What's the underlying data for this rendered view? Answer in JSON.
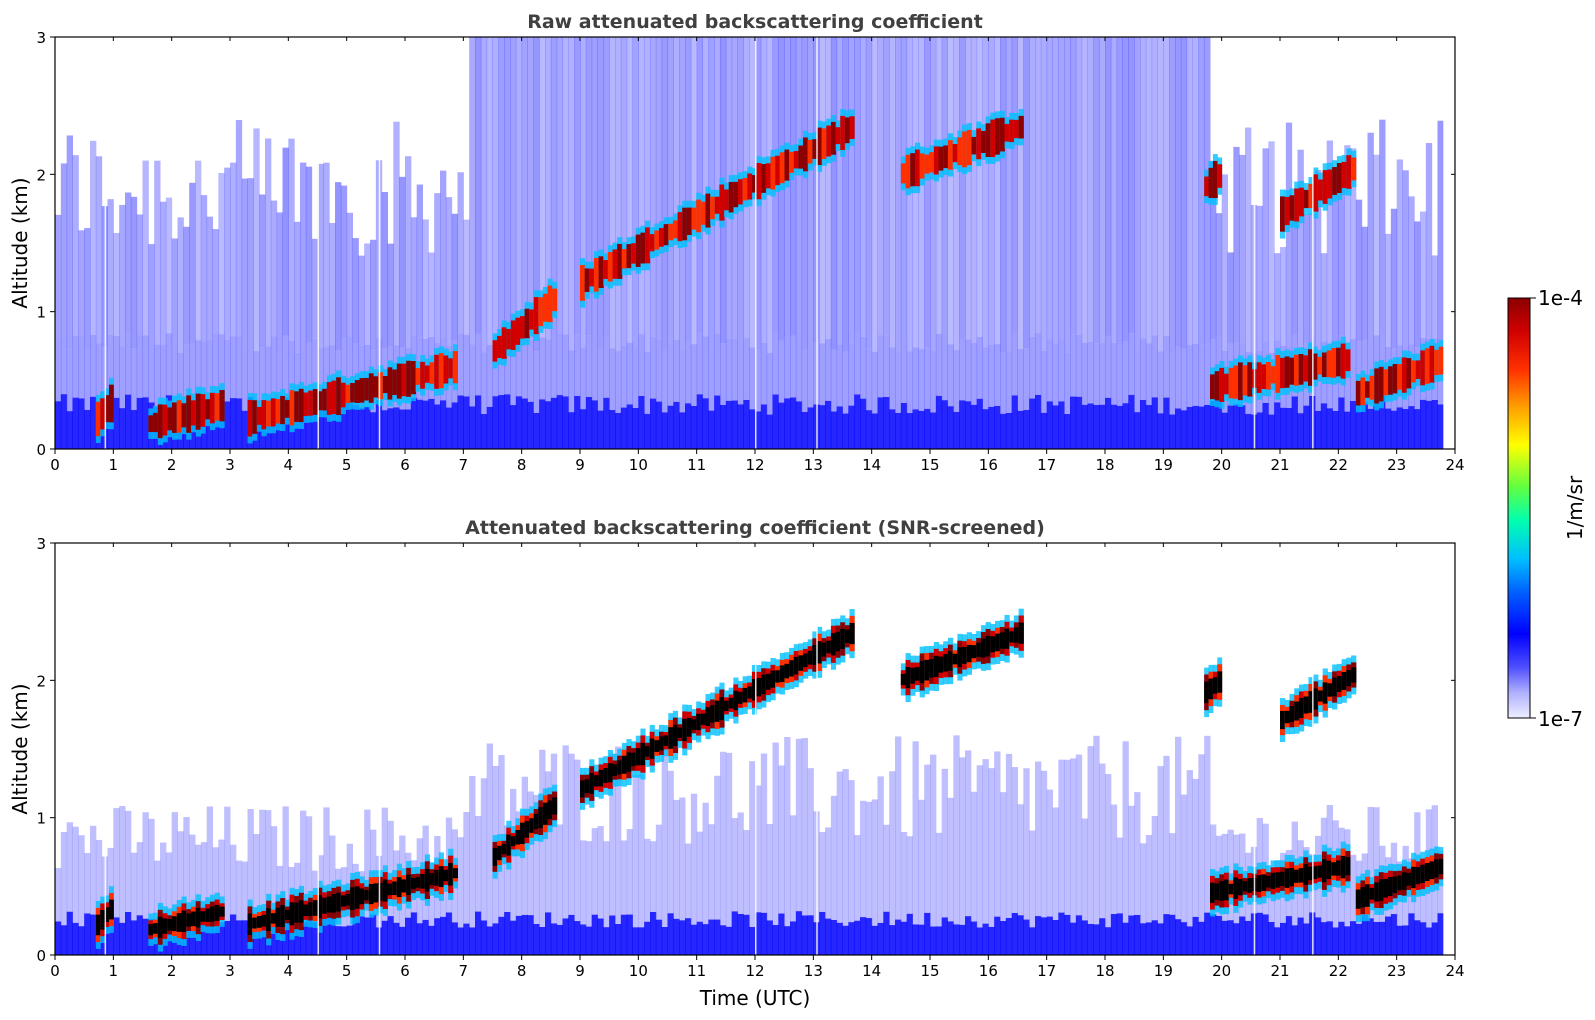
{
  "chart_data": [
    {
      "type": "heatmap",
      "title": "Raw attenuated backscattering coefficient",
      "xlabel": "",
      "ylabel": "Altitude (km)",
      "xlim": [
        0,
        24
      ],
      "ylim": [
        0,
        3
      ],
      "xticks": [
        "0",
        "1",
        "2",
        "3",
        "4",
        "5",
        "6",
        "7",
        "8",
        "9",
        "10",
        "11",
        "12",
        "13",
        "14",
        "15",
        "16",
        "17",
        "18",
        "19",
        "20",
        "21",
        "22",
        "23",
        "24"
      ],
      "yticks": [
        "0",
        "1",
        "2",
        "3"
      ],
      "features": [
        {
          "x": [
            0.7,
            1.0
          ],
          "y": [
            0.2,
            0.35
          ]
        },
        {
          "x": [
            1.6,
            2.9
          ],
          "y": [
            0.18,
            0.32
          ]
        },
        {
          "x": [
            3.3,
            6.9
          ],
          "y": [
            0.22,
            0.6
          ]
        },
        {
          "x": [
            7.5,
            8.6
          ],
          "y": [
            0.7,
            1.1
          ]
        },
        {
          "x": [
            9.0,
            13.7
          ],
          "y": [
            1.2,
            2.35
          ]
        },
        {
          "x": [
            14.5,
            16.6
          ],
          "y": [
            2.0,
            2.35
          ]
        },
        {
          "x": [
            19.7,
            20.0
          ],
          "y": [
            1.9,
            2.0
          ]
        },
        {
          "x": [
            19.8,
            22.2
          ],
          "y": [
            0.45,
            0.65
          ]
        },
        {
          "x": [
            21.0,
            22.3
          ],
          "y": [
            1.7,
            2.05
          ]
        },
        {
          "x": [
            22.3,
            23.8
          ],
          "y": [
            0.4,
            0.65
          ]
        }
      ],
      "grid": false
    },
    {
      "type": "heatmap",
      "title": "Attenuated backscattering coefficient (SNR-screened)",
      "xlabel": "Time (UTC)",
      "ylabel": "Altitude (km)",
      "xlim": [
        0,
        24
      ],
      "ylim": [
        0,
        3
      ],
      "xticks": [
        "0",
        "1",
        "2",
        "3",
        "4",
        "5",
        "6",
        "7",
        "8",
        "9",
        "10",
        "11",
        "12",
        "13",
        "14",
        "15",
        "16",
        "17",
        "18",
        "19",
        "20",
        "21",
        "22",
        "23",
        "24"
      ],
      "yticks": [
        "0",
        "1",
        "2",
        "3"
      ],
      "grid": false
    }
  ],
  "colorbar": {
    "label": "1/m/sr",
    "max_label": "1e-4",
    "min_label": "1e-7",
    "colors": [
      "#eeeeff",
      "#b0b0ff",
      "#5050ff",
      "#0000ff",
      "#0060ff",
      "#00c0ff",
      "#00ffb0",
      "#60ff40",
      "#ffff00",
      "#ffa000",
      "#ff3000",
      "#d00000",
      "#8b0000"
    ]
  },
  "text": {
    "title_top": "Raw attenuated backscattering coefficient",
    "title_bottom": "Attenuated backscattering coefficient (SNR-screened)",
    "ylabel_top": "Altitude (km)",
    "ylabel_bottom": "Altitude (km)",
    "xlabel": "Time (UTC)"
  }
}
